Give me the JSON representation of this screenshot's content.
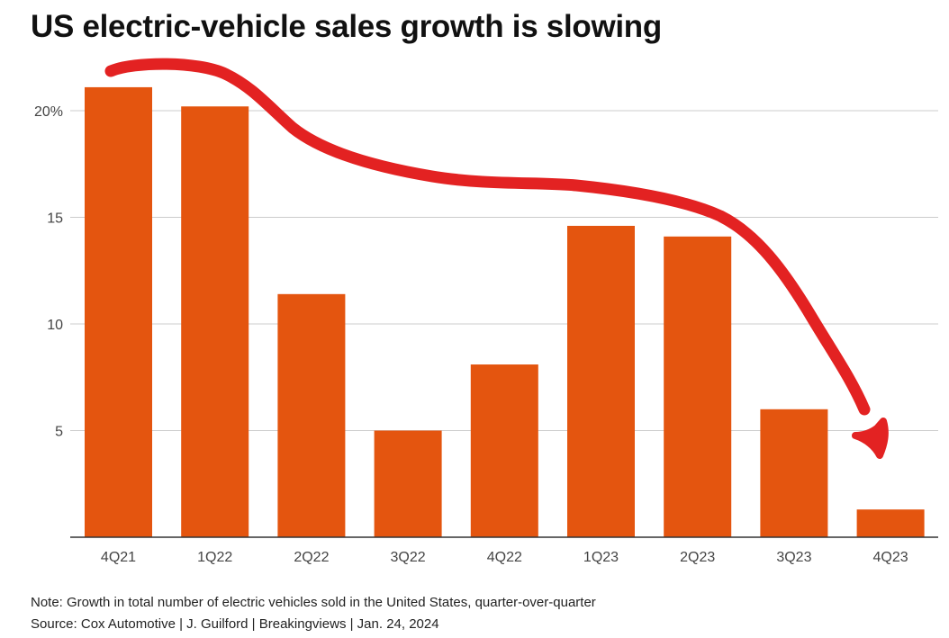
{
  "page": {
    "title": "US electric-vehicle sales growth is slowing",
    "note": "Note: Growth in total number of electric vehicles sold in the United States, quarter-over-quarter",
    "source": "Source: Cox Automotive | J. Guilford | Breakingviews | Jan. 24, 2024"
  },
  "chart_data": {
    "type": "bar",
    "title": "US electric-vehicle sales growth is slowing",
    "xlabel": "",
    "ylabel": "",
    "categories": [
      "4Q21",
      "1Q22",
      "2Q22",
      "3Q22",
      "4Q22",
      "1Q23",
      "2Q23",
      "3Q23",
      "4Q23"
    ],
    "values": [
      21.1,
      20.2,
      11.4,
      5.0,
      8.1,
      14.6,
      14.1,
      6.0,
      1.3
    ],
    "ylim": [
      0,
      22
    ],
    "yticks": [
      0,
      5,
      10,
      15,
      20
    ],
    "ytick_labels": [
      "",
      "5",
      "10",
      "15",
      "20%"
    ],
    "grid": true,
    "bar_color": "#e4550f",
    "gridline_color": "#cccccc",
    "axis_color": "#333333",
    "annotation": {
      "type": "hand-drawn-arrow",
      "color": "#e32222",
      "description_free": true
    }
  }
}
